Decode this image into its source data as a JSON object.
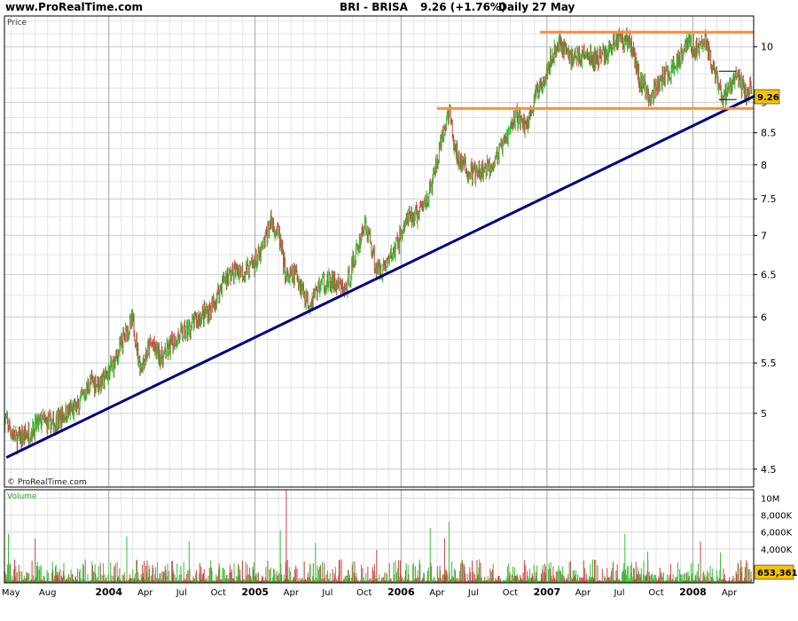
{
  "header": {
    "site": "www.ProRealTime.com",
    "symbol": "BRI - BRISA",
    "quote": "9.26 (+1.76%)",
    "period": "Daily",
    "date": "27 May"
  },
  "colors": {
    "up_bar": "#33c033",
    "down_bar": "#cc4444",
    "trend_line": "#000080",
    "channel_line": "#ff8c3c",
    "price_tag": "#f5c400",
    "volume_tag": "#f5c400",
    "grid_major": "#aaaaaa",
    "grid_minor": "#e4e4e4",
    "volume_label": "#2aa02a"
  },
  "chart_data": [
    {
      "type": "line",
      "title": "Price",
      "scale": "log",
      "ylim": [
        4.35,
        10.6
      ],
      "xlim": [
        "2003-04-15",
        "2008-06-01"
      ],
      "y_ticks": [
        4.5,
        5,
        5.5,
        6,
        6.5,
        7,
        7.5,
        8,
        8.5,
        9,
        10
      ],
      "last_price": "9.26",
      "copyright": "© ProRealTime.com",
      "series": [
        {
          "values": [
            [
              "2003-04-15",
              4.95
            ],
            [
              "2003-05-15",
              4.75
            ],
            [
              "2003-06-15",
              4.82
            ],
            [
              "2003-07-15",
              4.92
            ],
            [
              "2003-08-15",
              4.9
            ],
            [
              "2003-09-15",
              5.0
            ],
            [
              "2003-10-15",
              5.05
            ],
            [
              "2003-11-15",
              5.3
            ],
            [
              "2003-12-15",
              5.3
            ],
            [
              "2004-01-15",
              5.5
            ],
            [
              "2004-02-15",
              5.85
            ],
            [
              "2004-03-01",
              5.95
            ],
            [
              "2004-03-20",
              5.45
            ],
            [
              "2004-04-15",
              5.7
            ],
            [
              "2004-05-15",
              5.55
            ],
            [
              "2004-06-15",
              5.75
            ],
            [
              "2004-07-15",
              5.85
            ],
            [
              "2004-08-15",
              6.0
            ],
            [
              "2004-09-15",
              6.1
            ],
            [
              "2004-10-15",
              6.45
            ],
            [
              "2004-11-15",
              6.55
            ],
            [
              "2004-12-15",
              6.55
            ],
            [
              "2005-01-15",
              6.75
            ],
            [
              "2005-02-10",
              7.2
            ],
            [
              "2005-03-01",
              7.0
            ],
            [
              "2005-03-20",
              6.45
            ],
            [
              "2005-04-15",
              6.5
            ],
            [
              "2005-05-15",
              6.15
            ],
            [
              "2005-06-15",
              6.4
            ],
            [
              "2005-07-15",
              6.4
            ],
            [
              "2005-08-15",
              6.3
            ],
            [
              "2005-09-15",
              6.85
            ],
            [
              "2005-10-01",
              7.15
            ],
            [
              "2005-10-15",
              6.95
            ],
            [
              "2005-11-01",
              6.55
            ],
            [
              "2005-11-20",
              6.6
            ],
            [
              "2005-12-15",
              6.8
            ],
            [
              "2006-01-15",
              7.2
            ],
            [
              "2006-02-15",
              7.3
            ],
            [
              "2006-03-15",
              7.6
            ],
            [
              "2006-04-15",
              8.4
            ],
            [
              "2006-05-01",
              8.9
            ],
            [
              "2006-05-15",
              8.2
            ],
            [
              "2006-06-15",
              7.9
            ],
            [
              "2006-07-15",
              7.85
            ],
            [
              "2006-08-15",
              8.0
            ],
            [
              "2006-09-15",
              8.3
            ],
            [
              "2006-10-15",
              8.8
            ],
            [
              "2006-11-10",
              8.6
            ],
            [
              "2006-12-01",
              9.05
            ],
            [
              "2007-01-01",
              9.6
            ],
            [
              "2007-02-01",
              10.1
            ],
            [
              "2007-03-01",
              9.8
            ],
            [
              "2007-04-01",
              9.85
            ],
            [
              "2007-05-01",
              9.75
            ],
            [
              "2007-06-01",
              9.9
            ],
            [
              "2007-07-01",
              10.2
            ],
            [
              "2007-08-01",
              10.05
            ],
            [
              "2007-08-20",
              9.4
            ],
            [
              "2007-09-15",
              9.1
            ],
            [
              "2007-10-15",
              9.4
            ],
            [
              "2007-11-15",
              9.6
            ],
            [
              "2007-12-15",
              10.1
            ],
            [
              "2008-01-15",
              9.95
            ],
            [
              "2008-02-01",
              10.15
            ],
            [
              "2008-02-20",
              9.6
            ],
            [
              "2008-03-15",
              9.0
            ],
            [
              "2008-04-01",
              9.3
            ],
            [
              "2008-04-20",
              9.45
            ],
            [
              "2008-05-10",
              9.15
            ],
            [
              "2008-05-27",
              9.26
            ]
          ]
        }
      ],
      "annotations": {
        "trend_line": [
          [
            "2003-04-20",
            4.6
          ],
          [
            "2008-05-27",
            9.1
          ]
        ],
        "resistance": {
          "value": 10.28,
          "from": "2006-12-15",
          "to": "2008-05-27"
        },
        "support": {
          "value": 8.9,
          "from": "2006-04-01",
          "to": "2008-05-27"
        },
        "marks": [
          [
            "2008-03-28",
            9.55
          ],
          [
            "2008-03-28",
            9.05
          ]
        ]
      }
    },
    {
      "type": "bar",
      "title": "Volume",
      "ylim": [
        0,
        11000000
      ],
      "y_ticks": [
        {
          "value": 4000000,
          "label": "4,000K"
        },
        {
          "value": 6000000,
          "label": "6,000K"
        },
        {
          "value": 8000000,
          "label": "8,000K"
        },
        {
          "value": 10000000,
          "label": "10M"
        }
      ],
      "last_volume": "653,361",
      "highlights": [
        [
          "2003-04-25",
          5800000
        ],
        [
          "2003-07-01",
          5200000
        ],
        [
          "2004-02-15",
          5500000
        ],
        [
          "2004-07-20",
          4900000
        ],
        [
          "2005-03-20",
          11000000
        ],
        [
          "2005-03-05",
          6200000
        ],
        [
          "2005-06-01",
          4700000
        ],
        [
          "2005-11-01",
          3900000
        ],
        [
          "2006-03-15",
          6500000
        ],
        [
          "2006-05-01",
          7200000
        ],
        [
          "2006-04-20",
          5300000
        ],
        [
          "2007-07-15",
          5800000
        ],
        [
          "2007-09-10",
          3700000
        ],
        [
          "2008-01-20",
          4900000
        ],
        [
          "2008-03-10",
          3600000
        ]
      ]
    }
  ],
  "x_axis": {
    "ticks": [
      {
        "date": "2003-05-01",
        "label": "May",
        "major": false
      },
      {
        "date": "2003-08-01",
        "label": "Aug",
        "major": false
      },
      {
        "date": "2004-01-01",
        "label": "2004",
        "major": true
      },
      {
        "date": "2004-04-01",
        "label": "Apr",
        "major": false
      },
      {
        "date": "2004-07-01",
        "label": "Jul",
        "major": false
      },
      {
        "date": "2004-10-01",
        "label": "Oct",
        "major": false
      },
      {
        "date": "2005-01-01",
        "label": "2005",
        "major": true
      },
      {
        "date": "2005-04-01",
        "label": "Apr",
        "major": false
      },
      {
        "date": "2005-07-01",
        "label": "Jul",
        "major": false
      },
      {
        "date": "2005-10-01",
        "label": "Oct",
        "major": false
      },
      {
        "date": "2006-01-01",
        "label": "2006",
        "major": true
      },
      {
        "date": "2006-04-01",
        "label": "Apr",
        "major": false
      },
      {
        "date": "2006-07-01",
        "label": "Jul",
        "major": false
      },
      {
        "date": "2006-10-01",
        "label": "Oct",
        "major": false
      },
      {
        "date": "2007-01-01",
        "label": "2007",
        "major": true
      },
      {
        "date": "2007-04-01",
        "label": "Apr",
        "major": false
      },
      {
        "date": "2007-07-01",
        "label": "Jul",
        "major": false
      },
      {
        "date": "2007-10-01",
        "label": "Oct",
        "major": false
      },
      {
        "date": "2008-01-01",
        "label": "2008",
        "major": true
      },
      {
        "date": "2008-04-01",
        "label": "Apr",
        "major": false
      }
    ]
  }
}
